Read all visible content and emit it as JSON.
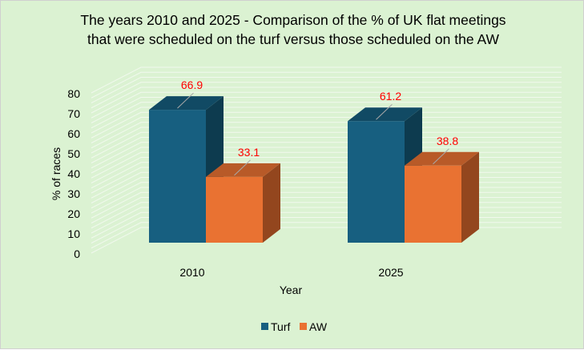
{
  "chart_data": {
    "type": "bar",
    "title_lines": [
      "The years 2010 and 2025 - Comparison of the % of UK flat meetings",
      "that were scheduled on the turf versus those scheduled on the AW"
    ],
    "xlabel": "Year",
    "ylabel": "% of races",
    "ylim": [
      0,
      80
    ],
    "yticks": [
      "0",
      "10",
      "20",
      "30",
      "40",
      "50",
      "60",
      "70",
      "80"
    ],
    "categories": [
      "2010",
      "2025"
    ],
    "series": [
      {
        "name": "Turf",
        "values": [
          66.9,
          61.2
        ],
        "labels": [
          "66.9",
          "61.2"
        ],
        "color": "#175f80",
        "top": "#114a64",
        "side": "#0d3b4f"
      },
      {
        "name": "AW",
        "values": [
          33.1,
          38.8
        ],
        "labels": [
          "33.1",
          "38.8"
        ],
        "color": "#e97232",
        "top": "#b85a28",
        "side": "#93461e"
      }
    ],
    "grid": true,
    "legend_position": "bottom",
    "label_color": "#ff0000"
  }
}
